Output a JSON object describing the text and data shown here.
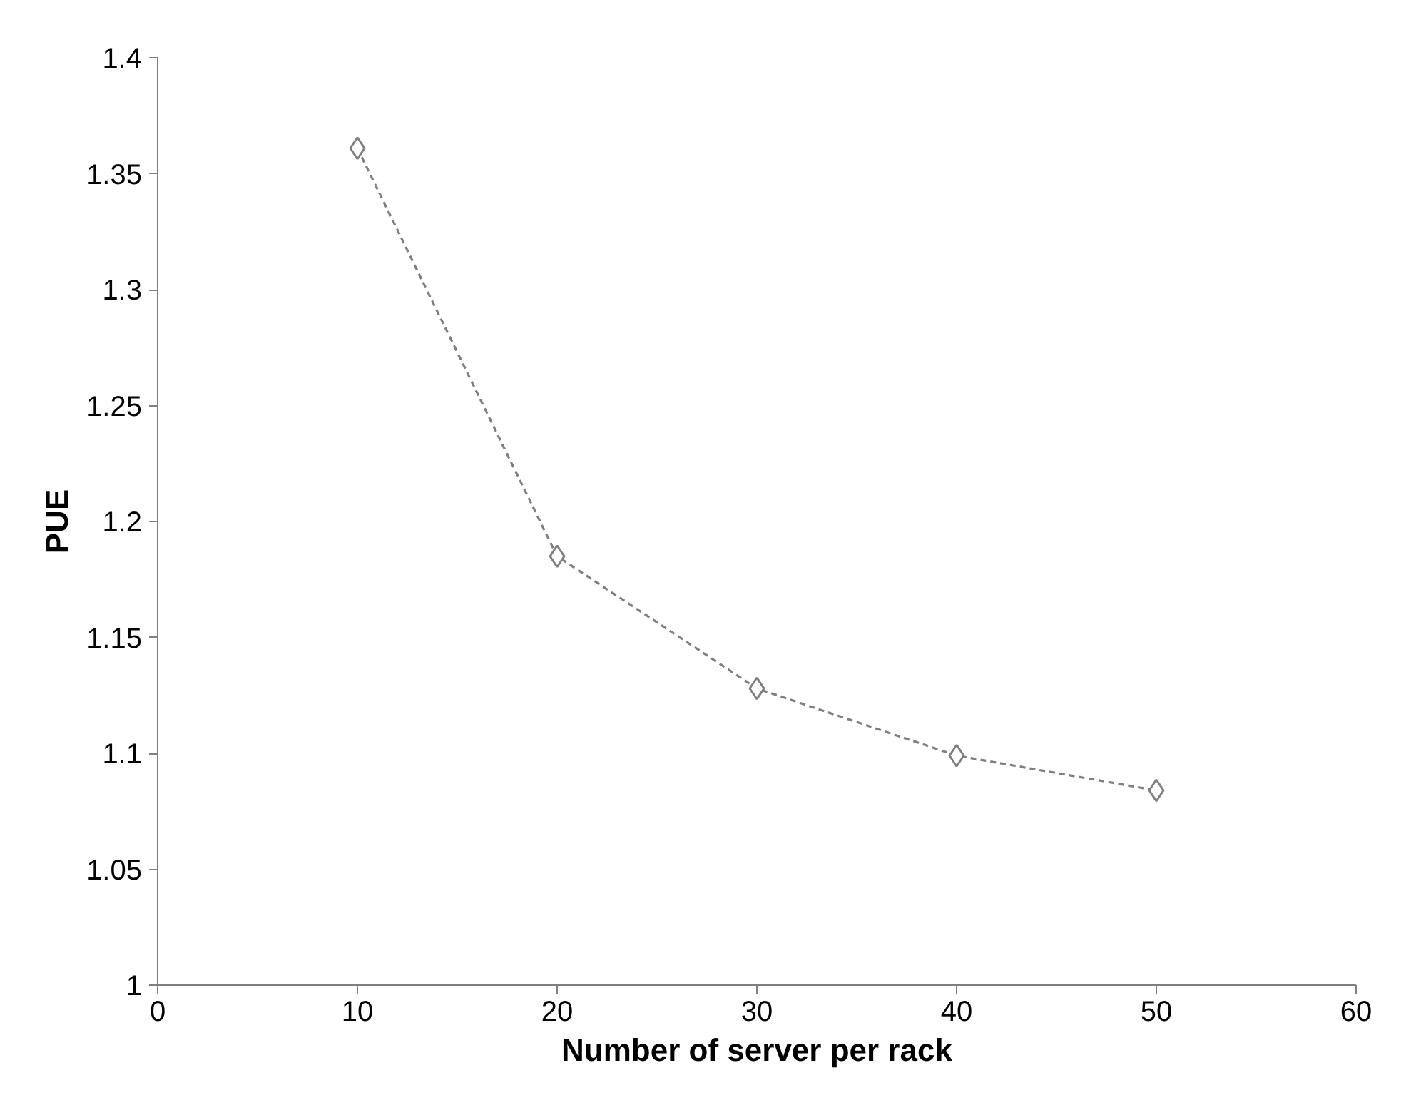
{
  "chart_data": {
    "type": "line",
    "xlabel": "Number of server per rack",
    "ylabel": "PUE",
    "x": [
      10,
      20,
      30,
      40,
      50
    ],
    "series": [
      {
        "color": "#7f7f7f",
        "values": [
          1.361,
          1.185,
          1.128,
          1.099,
          1.084
        ]
      }
    ],
    "xlim": [
      0,
      60
    ],
    "xticks": [
      0,
      10,
      20,
      30,
      40,
      50,
      60
    ],
    "ylim": [
      1,
      1.4
    ],
    "yticks": [
      1,
      1.05,
      1.1,
      1.15,
      1.2,
      1.25,
      1.3,
      1.35,
      1.4
    ],
    "marker": "diamond",
    "line_style": "dashed"
  }
}
